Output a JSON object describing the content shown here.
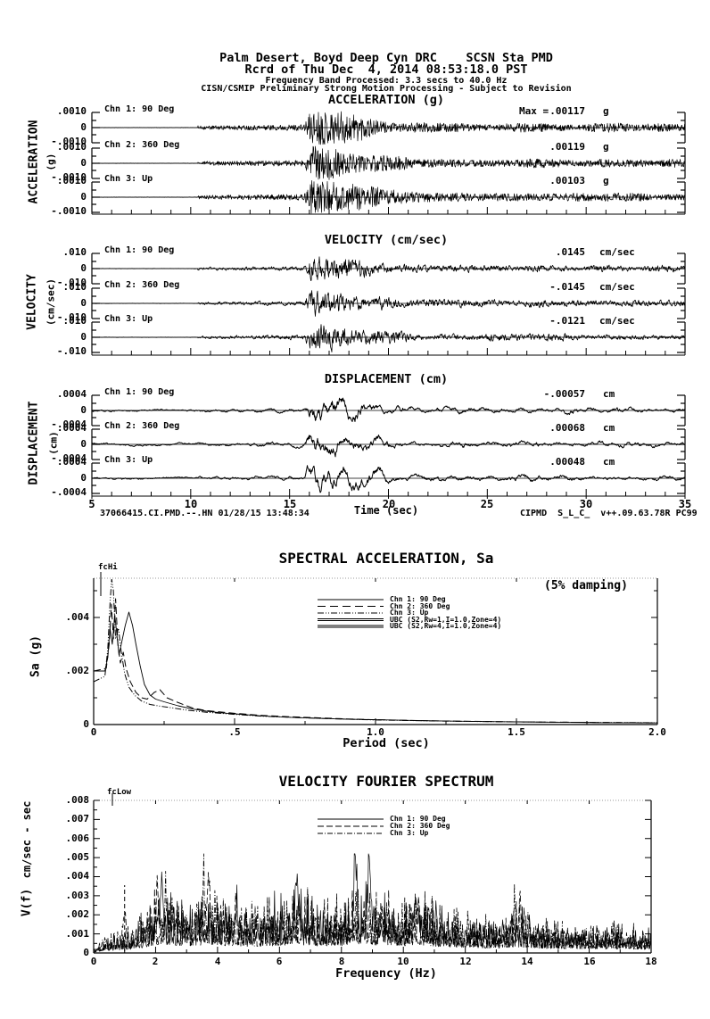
{
  "header": {
    "line1": "Palm Desert, Boyd Deep Cyn DRC    SCSN Sta PMD",
    "line2": "Rcrd of Thu Dec  4, 2014 08:53:18.0 PST",
    "line3": "Frequency Band Processed: 3.3 secs to 40.0 Hz",
    "line4": "CISN/CSMIP Preliminary Strong Motion Processing - Subject to Revision"
  },
  "colors": {
    "ink": "#000000",
    "paper": "#ffffff"
  },
  "timeseries": {
    "xlabel": "Time (sec)",
    "xticks": [
      "5",
      "10",
      "15",
      "20",
      "25",
      "30",
      "35"
    ],
    "footer_left": "37066415.CI.PMD.--.HN 01/28/15 13:48:34",
    "footer_right": "CIPMD  S_L_C_  v++.09.63.78R PC99",
    "groups": [
      {
        "title": "ACCELERATION (g)",
        "side": "ACCELERATION",
        "side_units": "(g)",
        "ypos": ".0010",
        "yzero": "0",
        "yneg": "-.0010",
        "channels": [
          {
            "label": "Chn 1: 90 Deg",
            "max_prefix": "Max =",
            "max": ".00117",
            "units": "g"
          },
          {
            "label": "Chn 2: 360 Deg",
            "max": ".00119",
            "units": "g"
          },
          {
            "label": "Chn 3: Up",
            "max": ".00103",
            "units": "g"
          }
        ]
      },
      {
        "title": "VELOCITY (cm/sec)",
        "side": "VELOCITY",
        "side_units": "(cm/sec)",
        "ypos": ".010",
        "yzero": "0",
        "yneg": "-.010",
        "channels": [
          {
            "label": "Chn 1: 90 Deg",
            "max": ".0145",
            "units": "cm/sec"
          },
          {
            "label": "Chn 2: 360 Deg",
            "max": "-.0145",
            "units": "cm/sec"
          },
          {
            "label": "Chn 3: Up",
            "max": "-.0121",
            "units": "cm/sec"
          }
        ]
      },
      {
        "title": "DISPLACEMENT (cm)",
        "side": "DISPLACEMENT",
        "side_units": "(cm)",
        "ypos": ".0004",
        "yzero": "0",
        "yneg": "-.0004",
        "channels": [
          {
            "label": "Chn 1: 90 Deg",
            "max": "-.00057",
            "units": "cm"
          },
          {
            "label": "Chn 2: 360 Deg",
            "max": ".00068",
            "units": "cm"
          },
          {
            "label": "Chn 3: Up",
            "max": ".00048",
            "units": "cm"
          }
        ]
      }
    ]
  },
  "sa": {
    "title": "SPECTRAL ACCELERATION, Sa",
    "damping_note": "(5% damping)",
    "fc_label": "fcHi",
    "ylabel": "Sa (g)",
    "xlabel": "Period (sec)",
    "yticks": [
      ".004",
      ".002",
      "0"
    ],
    "xticks": [
      "0",
      ".5",
      "1.0",
      "1.5",
      "2.0"
    ],
    "legend": [
      "Chn 1: 90 Deg",
      "Chn 2: 360 Deg",
      "Chn 3: Up",
      "UBC (S2,Rw=1,I=1.0,Zone=4)",
      "UBC (S2,Rw=4,I=1.0,Zone=4)"
    ]
  },
  "fourier": {
    "title": "VELOCITY FOURIER SPECTRUM",
    "fc_label": "fcLow",
    "ylabel_fn": "V(f)",
    "ylabel_units": "cm/sec - sec",
    "xlabel": "Frequency (Hz)",
    "yticks": [
      ".008",
      ".007",
      ".006",
      ".005",
      ".004",
      ".003",
      ".002",
      ".001",
      "0"
    ],
    "xticks": [
      "0",
      "2",
      "4",
      "6",
      "8",
      "10",
      "12",
      "14",
      "16",
      "18"
    ],
    "legend": [
      "Chn 1: 90 Deg",
      "Chn 2: 360 Deg",
      "Chn 3: Up"
    ]
  },
  "chart_data": [
    {
      "type": "line",
      "id": "acceleration_timeseries",
      "title": "ACCELERATION (g)",
      "x_range_sec": [
        5,
        35
      ],
      "y_range_g": [
        -0.001,
        0.001
      ],
      "channels": [
        {
          "name": "Chn 1: 90 Deg",
          "peak_g": 0.00117
        },
        {
          "name": "Chn 2: 360 Deg",
          "peak_g": 0.00119
        },
        {
          "name": "Chn 3: Up",
          "peak_g": 0.00103
        }
      ],
      "envelope_sec": {
        "quiet_until": 10.35,
        "noise_until": 15.75,
        "burst_until": 17.1,
        "coda_to": 35
      },
      "seeds": [
        11,
        12,
        13
      ],
      "character": "high-frequency"
    },
    {
      "type": "line",
      "id": "velocity_timeseries",
      "title": "VELOCITY (cm/sec)",
      "x_range_sec": [
        5,
        35
      ],
      "y_range_cmps": [
        -0.01,
        0.01
      ],
      "channels": [
        {
          "name": "Chn 1: 90 Deg",
          "peak_cmps": 0.0145
        },
        {
          "name": "Chn 2: 360 Deg",
          "peak_cmps": -0.0145
        },
        {
          "name": "Chn 3: Up",
          "peak_cmps": -0.0121
        }
      ],
      "envelope_sec": {
        "quiet_until": 10.35,
        "noise_until": 15.75,
        "burst_until": 17.1,
        "coda_to": 35
      },
      "seeds": [
        21,
        22,
        23
      ],
      "character": "mid-frequency"
    },
    {
      "type": "line",
      "id": "displacement_timeseries",
      "title": "DISPLACEMENT (cm)",
      "x_range_sec": [
        5,
        35
      ],
      "y_range_cm": [
        -0.0004,
        0.0004
      ],
      "channels": [
        {
          "name": "Chn 1: 90 Deg",
          "peak_cm": -0.00057
        },
        {
          "name": "Chn 2: 360 Deg",
          "peak_cm": 0.00068
        },
        {
          "name": "Chn 3: Up",
          "peak_cm": 0.00048
        }
      ],
      "envelope_sec": {
        "quiet_until": 10.35,
        "noise_until": 15.75,
        "burst_until": 17.1,
        "coda_to": 35
      },
      "seeds": [
        31,
        32,
        33
      ],
      "character": "low-frequency"
    },
    {
      "type": "line",
      "id": "spectral_acceleration",
      "title": "SPECTRAL ACCELERATION, Sa",
      "damping": "5%",
      "xlabel": "Period (sec)",
      "ylabel": "Sa (g)",
      "xlim": [
        0,
        2.0
      ],
      "ylim": [
        0,
        0.0055
      ],
      "fcHi_period_sec": 0.025,
      "ubc_curves_visible": false,
      "series": [
        {
          "name": "Chn 1: 90 Deg",
          "style": "solid",
          "points": [
            [
              0.0,
              0.002
            ],
            [
              0.04,
              0.002
            ],
            [
              0.05,
              0.0025
            ],
            [
              0.058,
              0.0036
            ],
            [
              0.066,
              0.003
            ],
            [
              0.075,
              0.0041
            ],
            [
              0.082,
              0.0034
            ],
            [
              0.09,
              0.0026
            ],
            [
              0.1,
              0.0031
            ],
            [
              0.112,
              0.0037
            ],
            [
              0.125,
              0.0042
            ],
            [
              0.138,
              0.0037
            ],
            [
              0.15,
              0.003
            ],
            [
              0.165,
              0.0022
            ],
            [
              0.18,
              0.0015
            ],
            [
              0.2,
              0.0011
            ],
            [
              0.22,
              0.00095
            ],
            [
              0.25,
              0.00085
            ],
            [
              0.3,
              0.0007
            ],
            [
              0.35,
              0.00058
            ],
            [
              0.4,
              0.0005
            ],
            [
              0.45,
              0.00044
            ],
            [
              0.5,
              0.0004
            ],
            [
              0.6,
              0.00032
            ],
            [
              0.7,
              0.00027
            ],
            [
              0.8,
              0.00023
            ],
            [
              0.9,
              0.0002
            ],
            [
              1.0,
              0.00018
            ],
            [
              1.2,
              0.00014
            ],
            [
              1.4,
              0.00011
            ],
            [
              1.6,
              9e-05
            ],
            [
              1.8,
              7e-05
            ],
            [
              2.0,
              6e-05
            ]
          ]
        },
        {
          "name": "Chn 2: 360 Deg",
          "style": "long-dash",
          "points": [
            [
              0.0,
              0.002
            ],
            [
              0.045,
              0.0021
            ],
            [
              0.055,
              0.003
            ],
            [
              0.063,
              0.0045
            ],
            [
              0.07,
              0.0032
            ],
            [
              0.078,
              0.0047
            ],
            [
              0.086,
              0.003
            ],
            [
              0.095,
              0.0023
            ],
            [
              0.105,
              0.0027
            ],
            [
              0.115,
              0.0021
            ],
            [
              0.13,
              0.0016
            ],
            [
              0.15,
              0.0012
            ],
            [
              0.17,
              0.001
            ],
            [
              0.19,
              0.00095
            ],
            [
              0.215,
              0.0012
            ],
            [
              0.235,
              0.0013
            ],
            [
              0.26,
              0.001
            ],
            [
              0.3,
              0.00082
            ],
            [
              0.35,
              0.00062
            ],
            [
              0.4,
              0.00052
            ],
            [
              0.5,
              0.00042
            ],
            [
              0.6,
              0.00034
            ],
            [
              0.7,
              0.00029
            ],
            [
              0.8,
              0.00025
            ],
            [
              0.9,
              0.00021
            ],
            [
              1.0,
              0.00018
            ],
            [
              1.2,
              0.00014
            ],
            [
              1.5,
              0.0001
            ],
            [
              2.0,
              6e-05
            ]
          ]
        },
        {
          "name": "Chn 3: Up",
          "style": "dash-dot-dot",
          "points": [
            [
              0.0,
              0.0016
            ],
            [
              0.04,
              0.0018
            ],
            [
              0.05,
              0.0028
            ],
            [
              0.058,
              0.0045
            ],
            [
              0.064,
              0.0058
            ],
            [
              0.07,
              0.005
            ],
            [
              0.078,
              0.0032
            ],
            [
              0.088,
              0.0036
            ],
            [
              0.098,
              0.0027
            ],
            [
              0.11,
              0.0019
            ],
            [
              0.125,
              0.0014
            ],
            [
              0.145,
              0.0011
            ],
            [
              0.17,
              0.00088
            ],
            [
              0.2,
              0.00075
            ],
            [
              0.24,
              0.00068
            ],
            [
              0.28,
              0.00062
            ],
            [
              0.33,
              0.00054
            ],
            [
              0.4,
              0.00046
            ],
            [
              0.5,
              0.00038
            ],
            [
              0.6,
              0.00031
            ],
            [
              0.8,
              0.00023
            ],
            [
              1.0,
              0.00017
            ],
            [
              1.3,
              0.00012
            ],
            [
              1.6,
              9e-05
            ],
            [
              2.0,
              7e-05
            ]
          ]
        }
      ]
    },
    {
      "type": "line",
      "id": "velocity_fourier_spectrum",
      "title": "VELOCITY FOURIER SPECTRUM",
      "xlabel": "Frequency (Hz)",
      "ylabel": "V(f) cm/sec - sec",
      "xlim": [
        0,
        18
      ],
      "ylim": [
        0,
        0.008
      ],
      "fcLow_freq_hz": 0.3,
      "dashed_marker_hz": 1.0,
      "envelope_points": [
        [
          0,
          0.00015
        ],
        [
          0.3,
          0.0006
        ],
        [
          0.8,
          0.0007
        ],
        [
          1.2,
          0.0009
        ],
        [
          1.6,
          0.0014
        ],
        [
          2.0,
          0.0019
        ],
        [
          2.4,
          0.0021
        ],
        [
          3.0,
          0.0018
        ],
        [
          3.6,
          0.002
        ],
        [
          4.2,
          0.0019
        ],
        [
          5.0,
          0.0017
        ],
        [
          6.0,
          0.0019
        ],
        [
          6.6,
          0.0022
        ],
        [
          7.2,
          0.0018
        ],
        [
          8.0,
          0.0019
        ],
        [
          8.6,
          0.0023
        ],
        [
          9.2,
          0.002
        ],
        [
          10.0,
          0.0019
        ],
        [
          10.6,
          0.002
        ],
        [
          11.2,
          0.0016
        ],
        [
          12.0,
          0.0014
        ],
        [
          13.0,
          0.0012
        ],
        [
          13.8,
          0.0015
        ],
        [
          14.4,
          0.0012
        ],
        [
          15.0,
          0.0011
        ],
        [
          16.0,
          0.001
        ],
        [
          17.0,
          0.001
        ],
        [
          18.0,
          0.0009
        ]
      ],
      "series": [
        {
          "name": "Chn 1: 90 Deg",
          "style": "solid",
          "seed": 41,
          "spikes": [
            [
              2.2,
              0.0028
            ],
            [
              4.6,
              0.0015
            ],
            [
              6.55,
              0.0032
            ],
            [
              8.45,
              0.0028
            ],
            [
              8.9,
              0.0032
            ],
            [
              10.4,
              0.0021
            ]
          ]
        },
        {
          "name": "Chn 2: 360 Deg",
          "style": "long-dash",
          "seed": 42,
          "spikes": [
            [
              1.0,
              0.0018
            ],
            [
              2.05,
              0.0022
            ],
            [
              3.7,
              0.003
            ],
            [
              13.75,
              0.0018
            ]
          ]
        },
        {
          "name": "Chn 3: Up",
          "style": "dash-dot",
          "seed": 43,
          "spikes": [
            [
              2.35,
              0.0018
            ],
            [
              3.55,
              0.0026
            ],
            [
              9.3,
              0.0015
            ],
            [
              13.6,
              0.0016
            ]
          ]
        }
      ]
    }
  ]
}
